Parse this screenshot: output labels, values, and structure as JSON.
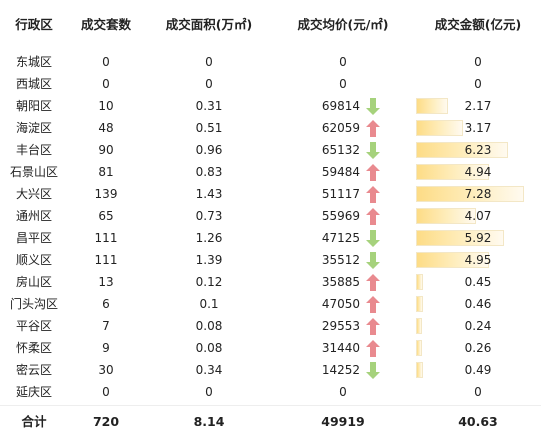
{
  "table": {
    "headers": {
      "district": "行政区",
      "count": "成交套数",
      "area": "成交面积(万㎡)",
      "price": "成交均价(元/㎡)",
      "amount": "成交金额(亿元)"
    },
    "rows": [
      {
        "district": "东城区",
        "count": "0",
        "area": "0",
        "price": "0",
        "trend": "none",
        "amount": "0",
        "amount_value": 0
      },
      {
        "district": "西城区",
        "count": "0",
        "area": "0",
        "price": "0",
        "trend": "none",
        "amount": "0",
        "amount_value": 0
      },
      {
        "district": "朝阳区",
        "count": "10",
        "area": "0.31",
        "price": "69814",
        "trend": "down",
        "amount": "2.17",
        "amount_value": 2.17
      },
      {
        "district": "海淀区",
        "count": "48",
        "area": "0.51",
        "price": "62059",
        "trend": "up",
        "amount": "3.17",
        "amount_value": 3.17
      },
      {
        "district": "丰台区",
        "count": "90",
        "area": "0.96",
        "price": "65132",
        "trend": "down",
        "amount": "6.23",
        "amount_value": 6.23
      },
      {
        "district": "石景山区",
        "count": "81",
        "area": "0.83",
        "price": "59484",
        "trend": "up",
        "amount": "4.94",
        "amount_value": 4.94
      },
      {
        "district": "大兴区",
        "count": "139",
        "area": "1.43",
        "price": "51117",
        "trend": "up",
        "amount": "7.28",
        "amount_value": 7.28
      },
      {
        "district": "通州区",
        "count": "65",
        "area": "0.73",
        "price": "55969",
        "trend": "up",
        "amount": "4.07",
        "amount_value": 4.07
      },
      {
        "district": "昌平区",
        "count": "111",
        "area": "1.26",
        "price": "47125",
        "trend": "down",
        "amount": "5.92",
        "amount_value": 5.92
      },
      {
        "district": "顺义区",
        "count": "111",
        "area": "1.39",
        "price": "35512",
        "trend": "down",
        "amount": "4.95",
        "amount_value": 4.95
      },
      {
        "district": "房山区",
        "count": "13",
        "area": "0.12",
        "price": "35885",
        "trend": "up",
        "amount": "0.45",
        "amount_value": 0.45
      },
      {
        "district": "门头沟区",
        "count": "6",
        "area": "0.1",
        "price": "47050",
        "trend": "up",
        "amount": "0.46",
        "amount_value": 0.46
      },
      {
        "district": "平谷区",
        "count": "7",
        "area": "0.08",
        "price": "29553",
        "trend": "up",
        "amount": "0.24",
        "amount_value": 0.24
      },
      {
        "district": "怀柔区",
        "count": "9",
        "area": "0.08",
        "price": "31440",
        "trend": "up",
        "amount": "0.26",
        "amount_value": 0.26
      },
      {
        "district": "密云区",
        "count": "30",
        "area": "0.34",
        "price": "14252",
        "trend": "down",
        "amount": "0.49",
        "amount_value": 0.49
      },
      {
        "district": "延庆区",
        "count": "0",
        "area": "0",
        "price": "0",
        "trend": "none",
        "amount": "0",
        "amount_value": 0
      }
    ],
    "total": {
      "label": "合计",
      "count": "720",
      "area": "8.14",
      "price": "49919",
      "amount": "40.63"
    }
  },
  "colors": {
    "up_arrow": "#e98a8f",
    "down_arrow": "#a6d27c",
    "bar_start": "#fddc86",
    "bar_end": "#fffaf0"
  },
  "icons": {
    "up": "up-arrow-icon",
    "down": "down-arrow-icon"
  }
}
